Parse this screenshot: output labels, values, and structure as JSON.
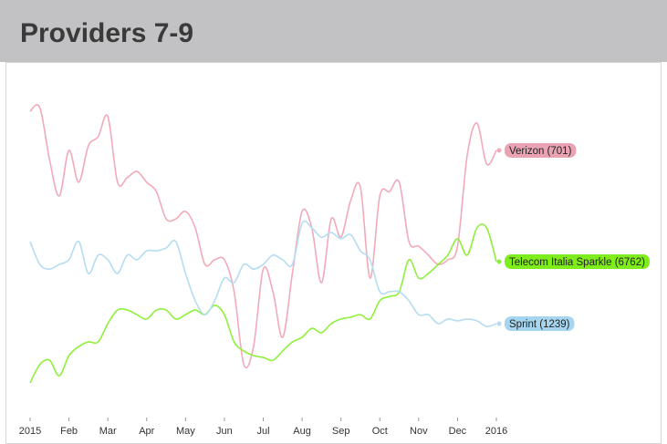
{
  "header": {
    "title": "Providers 7-9"
  },
  "chart_data": {
    "type": "line",
    "x": [
      0,
      0.25,
      0.5,
      0.75,
      1,
      1.25,
      1.5,
      1.75,
      2,
      2.25,
      2.5,
      2.75,
      3,
      3.25,
      3.5,
      3.75,
      4,
      4.25,
      4.5,
      4.75,
      5,
      5.25,
      5.5,
      5.75,
      6,
      6.25,
      6.5,
      6.75,
      7,
      7.25,
      7.5,
      7.75,
      8,
      8.25,
      8.5,
      8.75,
      9,
      9.25,
      9.5,
      9.75,
      10,
      10.25,
      10.5,
      10.75,
      11,
      11.25,
      11.5,
      11.75,
      12
    ],
    "xlim": [
      0,
      12
    ],
    "xticks": [
      {
        "value": 0,
        "label": "2015"
      },
      {
        "value": 1,
        "label": "Feb"
      },
      {
        "value": 2,
        "label": "Mar"
      },
      {
        "value": 3,
        "label": "Apr"
      },
      {
        "value": 4,
        "label": "May"
      },
      {
        "value": 5,
        "label": "Jun"
      },
      {
        "value": 6,
        "label": "Jul"
      },
      {
        "value": 7,
        "label": "Aug"
      },
      {
        "value": 8,
        "label": "Sep"
      },
      {
        "value": 9,
        "label": "Oct"
      },
      {
        "value": 10,
        "label": "Nov"
      },
      {
        "value": 11,
        "label": "Dec"
      },
      {
        "value": 12,
        "label": "2016"
      }
    ],
    "ylim": [
      0,
      100
    ],
    "series": [
      {
        "name": "Verizon (701)",
        "color": "#f2aab9",
        "label_color": "#e9a3b3",
        "values": [
          93.5,
          94.7,
          77.9,
          66.2,
          80.9,
          70.6,
          82.4,
          85.3,
          91.8,
          70.6,
          72.1,
          74.1,
          70.6,
          67.6,
          58.8,
          58.8,
          61.2,
          55.9,
          44.1,
          45.6,
          45.6,
          35.3,
          11.8,
          17.6,
          42.6,
          35.3,
          20.6,
          41.2,
          61.2,
          55.9,
          38.2,
          58.8,
          52.9,
          64.7,
          69.1,
          39.7,
          66.2,
          67.6,
          70.6,
          51.5,
          50,
          47.1,
          44.1,
          45.6,
          50,
          79.4,
          89.7,
          76.5,
          80.9
        ]
      },
      {
        "name": "Telecom Italia Sparkle (6762)",
        "color": "#8ef03a",
        "label_color": "#7fec1c",
        "values": [
          5.9,
          11.8,
          13.2,
          8.2,
          14.7,
          17.6,
          19.1,
          19.1,
          25,
          29.4,
          29.4,
          27.9,
          26.5,
          29.4,
          29.4,
          26.5,
          27.9,
          29.4,
          27.9,
          30.9,
          27.9,
          19.1,
          16.2,
          14.7,
          14.1,
          13.2,
          16.2,
          19.1,
          20.6,
          23.5,
          22.1,
          25,
          26.5,
          27.1,
          27.9,
          26.5,
          32.4,
          33.8,
          35.3,
          45.6,
          39.7,
          41.2,
          44.1,
          47.1,
          52.4,
          47.1,
          55.9,
          55.9,
          45
        ]
      },
      {
        "name": "Sprint (1239)",
        "color": "#b4dcf2",
        "label_color": "#a6d5f0",
        "values": [
          51.5,
          44.1,
          42.6,
          44.1,
          45.6,
          51.5,
          41.2,
          47.1,
          45.6,
          41.2,
          47.1,
          45.6,
          48.5,
          48.5,
          49.4,
          51.5,
          41.2,
          32.4,
          27.9,
          32.4,
          39.7,
          38.2,
          44.1,
          42.6,
          44.1,
          47.1,
          45.6,
          44.1,
          57.4,
          55.9,
          52.9,
          54.4,
          52.4,
          53.7,
          48.5,
          45.6,
          35.3,
          35.3,
          35.3,
          32.4,
          27.9,
          27.9,
          25,
          26.5,
          25.9,
          26.5,
          25.9,
          24.1,
          25
        ]
      }
    ]
  }
}
